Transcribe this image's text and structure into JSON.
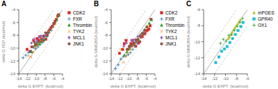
{
  "chart_data": [
    {
      "type": "scatter",
      "title": "A",
      "x_label": "delta G EXPT. (kcal/mol)",
      "y_label": "delta G FEP (kcal/mol)",
      "xlim": [
        -14,
        -4
      ],
      "ylim": [
        -14,
        -4
      ],
      "xticks": [
        -14,
        -12,
        -10,
        -8,
        -6,
        -4
      ],
      "yticks": [
        -14,
        -12,
        -10,
        -8,
        -6,
        -4
      ],
      "grid": false,
      "legend": "right",
      "diagonal_offset": 2.0,
      "series": [
        {
          "name": "CDK2",
          "color": "#d62728",
          "marker": "square",
          "values": [
            [
              -12.1,
              -10.2
            ],
            [
              -11.4,
              -10.5
            ],
            [
              -11.0,
              -9.8
            ],
            [
              -10.6,
              -8.8
            ],
            [
              -10.2,
              -9.5
            ],
            [
              -9.8,
              -8.5
            ],
            [
              -9.5,
              -8.8
            ],
            [
              -9.2,
              -8.2
            ],
            [
              -8.9,
              -9.0
            ],
            [
              -8.7,
              -8.6
            ],
            [
              -8.4,
              -8.8
            ],
            [
              -8.1,
              -8.1
            ],
            [
              -7.8,
              -8.6
            ],
            [
              -7.5,
              -8.0
            ],
            [
              -7.2,
              -7.4
            ],
            [
              -6.9,
              -7.1
            ],
            [
              -6.6,
              -6.8
            ],
            [
              -6.3,
              -6.6
            ],
            [
              -6.0,
              -6.2
            ],
            [
              -5.7,
              -5.8
            ],
            [
              -5.4,
              -5.5
            ],
            [
              -5.1,
              -5.0
            ],
            [
              -4.9,
              -4.8
            ]
          ]
        },
        {
          "name": "FXR",
          "color": "#1f77b4",
          "marker": "plus",
          "values": [
            [
              -13.0,
              -11.5
            ],
            [
              -12.4,
              -11.1
            ],
            [
              -11.8,
              -10.7
            ],
            [
              -11.2,
              -10.5
            ],
            [
              -10.6,
              -9.9
            ],
            [
              -10.1,
              -10.1
            ],
            [
              -9.6,
              -9.8
            ],
            [
              -9.1,
              -9.4
            ],
            [
              -8.6,
              -9.1
            ],
            [
              -8.1,
              -8.7
            ],
            [
              -7.6,
              -8.2
            ],
            [
              -7.1,
              -7.6
            ],
            [
              -6.6,
              -7.2
            ]
          ]
        },
        {
          "name": "Thrombin",
          "color": "#2ca02c",
          "marker": "triangle",
          "values": [
            [
              -11.0,
              -10.6
            ],
            [
              -10.4,
              -9.6
            ],
            [
              -9.8,
              -9.1
            ],
            [
              -9.3,
              -9.4
            ],
            [
              -8.8,
              -9.0
            ],
            [
              -8.3,
              -8.6
            ],
            [
              -7.8,
              -8.1
            ],
            [
              -7.3,
              -7.6
            ],
            [
              -6.8,
              -7.1
            ],
            [
              -6.3,
              -6.6
            ],
            [
              -5.8,
              -6.1
            ],
            [
              -5.3,
              -5.6
            ],
            [
              -4.8,
              -4.9
            ]
          ]
        },
        {
          "name": "TYK2",
          "color": "#ff7f0e",
          "marker": "x",
          "values": [
            [
              -11.8,
              -11.2
            ],
            [
              -11.2,
              -11.4
            ],
            [
              -10.7,
              -10.6
            ],
            [
              -10.2,
              -9.9
            ],
            [
              -9.7,
              -9.5
            ],
            [
              -9.2,
              -9.0
            ],
            [
              -8.7,
              -8.7
            ],
            [
              -8.2,
              -8.4
            ],
            [
              -7.7,
              -7.6
            ],
            [
              -7.2,
              -7.4
            ],
            [
              -6.7,
              -7.0
            ],
            [
              -6.2,
              -6.7
            ],
            [
              -5.7,
              -6.2
            ]
          ]
        },
        {
          "name": "MCL1",
          "color": "#9467bd",
          "marker": "diamond",
          "values": [
            [
              -11.1,
              -9.2
            ],
            [
              -10.5,
              -8.6
            ],
            [
              -9.9,
              -8.9
            ],
            [
              -9.4,
              -8.3
            ],
            [
              -8.9,
              -8.1
            ],
            [
              -8.4,
              -8.4
            ],
            [
              -7.9,
              -8.0
            ],
            [
              -7.4,
              -7.6
            ],
            [
              -6.9,
              -7.1
            ],
            [
              -6.4,
              -6.6
            ]
          ]
        },
        {
          "name": "JNK1",
          "color": "#8c564b",
          "marker": "circle",
          "values": [
            [
              -10.4,
              -9.1
            ],
            [
              -9.9,
              -9.4
            ],
            [
              -9.4,
              -9.0
            ],
            [
              -8.9,
              -8.6
            ],
            [
              -8.4,
              -8.1
            ],
            [
              -7.9,
              -7.6
            ],
            [
              -7.4,
              -7.6
            ],
            [
              -6.9,
              -7.1
            ],
            [
              -6.4,
              -6.6
            ],
            [
              -5.9,
              -6.1
            ]
          ]
        }
      ]
    },
    {
      "type": "scatter",
      "title": "B",
      "x_label": "delta G EXPT. (kcal/mol)",
      "y_label": "delta G MMGBSA (kcal/mol)",
      "xlim": [
        -14,
        -4
      ],
      "ylim": [
        -14,
        -4
      ],
      "xticks": [
        -14,
        -12,
        -10,
        -8,
        -6,
        -4
      ],
      "yticks": [
        -14,
        -12,
        -10,
        -8,
        -6,
        -4
      ],
      "grid": false,
      "legend": "right",
      "diagonal_offset": 2.0,
      "series": [
        {
          "name": "CDK2",
          "color": "#d62728",
          "marker": "square",
          "values": [
            [
              -12.1,
              -10.8
            ],
            [
              -11.4,
              -10.2
            ],
            [
              -11.0,
              -9.3
            ],
            [
              -10.6,
              -8.8
            ],
            [
              -10.2,
              -10.2
            ],
            [
              -9.8,
              -9.8
            ],
            [
              -9.5,
              -9.3
            ],
            [
              -9.2,
              -8.8
            ],
            [
              -8.9,
              -9.4
            ],
            [
              -8.7,
              -9.2
            ],
            [
              -8.4,
              -9.7
            ],
            [
              -8.1,
              -8.8
            ],
            [
              -7.8,
              -9.2
            ],
            [
              -7.5,
              -9.0
            ],
            [
              -7.2,
              -8.3
            ],
            [
              -6.9,
              -8.2
            ],
            [
              -6.6,
              -7.8
            ],
            [
              -6.3,
              -7.7
            ],
            [
              -6.0,
              -7.3
            ],
            [
              -5.7,
              -7.2
            ],
            [
              -5.4,
              -7.0
            ],
            [
              -5.1,
              -6.5
            ],
            [
              -4.9,
              -5.5
            ]
          ]
        },
        {
          "name": "FXR",
          "color": "#1f77b4",
          "marker": "plus",
          "values": [
            [
              -13.0,
              -13.2
            ],
            [
              -12.4,
              -12.6
            ],
            [
              -11.8,
              -11.7
            ],
            [
              -11.2,
              -11.3
            ],
            [
              -10.6,
              -11.2
            ],
            [
              -10.1,
              -11.0
            ],
            [
              -9.6,
              -10.7
            ],
            [
              -9.1,
              -10.2
            ],
            [
              -8.6,
              -9.7
            ],
            [
              -8.1,
              -9.2
            ],
            [
              -7.6,
              -8.9
            ],
            [
              -7.1,
              -8.2
            ],
            [
              -6.6,
              -7.6
            ]
          ]
        },
        {
          "name": "Thrombin",
          "color": "#2ca02c",
          "marker": "triangle",
          "values": [
            [
              -11.0,
              -11.1
            ],
            [
              -10.4,
              -10.6
            ],
            [
              -9.8,
              -10.1
            ],
            [
              -9.3,
              -9.6
            ],
            [
              -8.8,
              -9.3
            ],
            [
              -8.3,
              -9.0
            ],
            [
              -7.8,
              -8.6
            ],
            [
              -7.3,
              -7.9
            ],
            [
              -6.8,
              -7.6
            ],
            [
              -6.3,
              -7.1
            ],
            [
              -5.8,
              -6.6
            ],
            [
              -5.3,
              -6.1
            ],
            [
              -4.8,
              -5.6
            ]
          ]
        },
        {
          "name": "TYK2",
          "color": "#ff7f0e",
          "marker": "x",
          "values": [
            [
              -11.8,
              -10.2
            ],
            [
              -11.2,
              -12.2
            ],
            [
              -10.7,
              -11.3
            ],
            [
              -10.2,
              -10.8
            ],
            [
              -9.7,
              -10.2
            ],
            [
              -9.2,
              -9.8
            ],
            [
              -8.7,
              -9.3
            ],
            [
              -8.2,
              -9.0
            ],
            [
              -7.7,
              -8.7
            ],
            [
              -7.2,
              -8.2
            ],
            [
              -6.7,
              -7.7
            ],
            [
              -6.2,
              -7.2
            ],
            [
              -5.7,
              -6.7
            ]
          ]
        },
        {
          "name": "MCL1",
          "color": "#9467bd",
          "marker": "diamond",
          "values": [
            [
              -11.1,
              -9.7
            ],
            [
              -10.5,
              -9.2
            ],
            [
              -9.9,
              -9.7
            ],
            [
              -9.4,
              -8.8
            ],
            [
              -8.9,
              -8.7
            ],
            [
              -8.4,
              -9.0
            ],
            [
              -7.9,
              -8.2
            ],
            [
              -7.4,
              -8.1
            ],
            [
              -6.9,
              -7.7
            ],
            [
              -6.4,
              -7.2
            ]
          ]
        },
        {
          "name": "JNK1",
          "color": "#8c564b",
          "marker": "circle",
          "values": [
            [
              -10.4,
              -10.2
            ],
            [
              -9.9,
              -9.7
            ],
            [
              -9.4,
              -9.6
            ],
            [
              -8.9,
              -9.2
            ],
            [
              -8.4,
              -8.7
            ],
            [
              -7.9,
              -8.6
            ],
            [
              -7.4,
              -8.1
            ],
            [
              -6.9,
              -7.7
            ],
            [
              -6.4,
              -7.2
            ],
            [
              -5.9,
              -6.7
            ]
          ]
        }
      ]
    },
    {
      "type": "scatter",
      "title": "C",
      "x_label": "delta G EXPT. (kcal/mol)",
      "y_label": "delta G MMGBSA (kcal/mol)",
      "xlim": [
        -14,
        -6
      ],
      "ylim": [
        -14,
        -6
      ],
      "xticks": [
        -14,
        -12,
        -10,
        -8,
        -6
      ],
      "yticks": [
        -14,
        -12,
        -10,
        -8,
        -6
      ],
      "grid": false,
      "legend": "right",
      "diagonal_offset": 2.0,
      "series": [
        {
          "name": "mPGES",
          "color": "#bcbd22",
          "marker": "triangle",
          "values": [
            [
              -9.5,
              -9.6
            ],
            [
              -9.3,
              -9.4
            ],
            [
              -9.0,
              -9.1
            ],
            [
              -8.8,
              -8.8
            ],
            [
              -8.5,
              -8.5
            ],
            [
              -8.3,
              -8.3
            ],
            [
              -8.0,
              -8.0
            ],
            [
              -7.8,
              -7.8
            ],
            [
              -7.5,
              -7.5
            ],
            [
              -7.3,
              -7.3
            ]
          ]
        },
        {
          "name": "GPR40",
          "color": "#17becf",
          "marker": "square",
          "values": [
            [
              -11.8,
              -12.6
            ],
            [
              -11.2,
              -11.9
            ],
            [
              -10.7,
              -11.2
            ],
            [
              -10.2,
              -10.9
            ],
            [
              -9.7,
              -10.6
            ],
            [
              -9.2,
              -10.1
            ],
            [
              -8.7,
              -9.6
            ],
            [
              -8.2,
              -9.1
            ],
            [
              -7.7,
              -8.6
            ],
            [
              -7.2,
              -8.1
            ],
            [
              -6.8,
              -7.6
            ]
          ]
        },
        {
          "name": "OX1",
          "color": "#2ca02c",
          "marker": "plus",
          "values": [
            [
              -10.9,
              -10.2
            ],
            [
              -10.4,
              -9.7
            ],
            [
              -9.9,
              -9.9
            ],
            [
              -9.4,
              -9.2
            ],
            [
              -8.9,
              -9.1
            ],
            [
              -8.4,
              -8.6
            ],
            [
              -7.9,
              -8.1
            ],
            [
              -7.4,
              -7.6
            ],
            [
              -6.9,
              -7.1
            ]
          ]
        }
      ]
    }
  ]
}
